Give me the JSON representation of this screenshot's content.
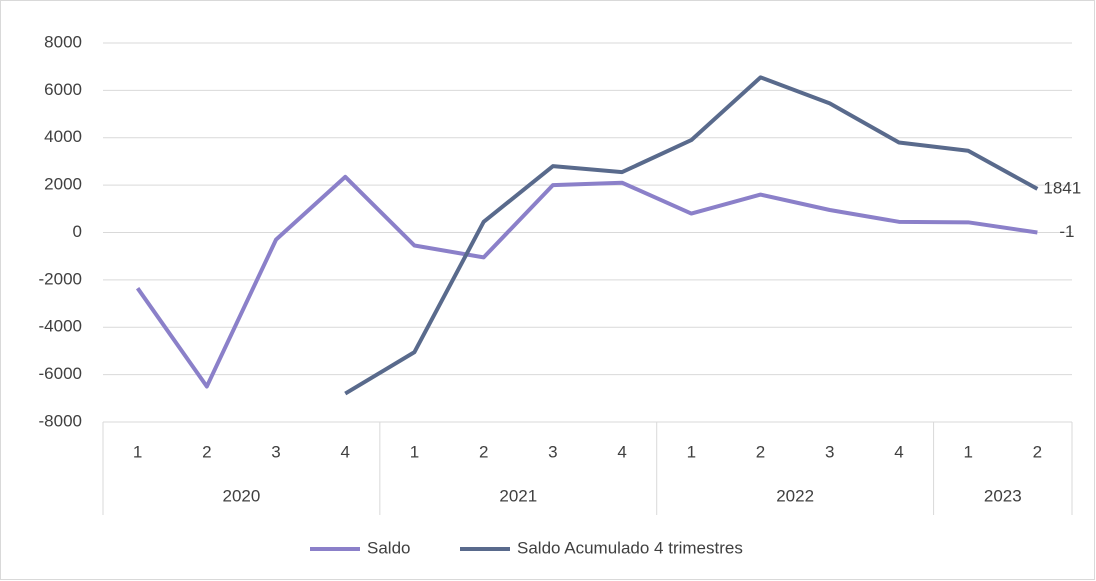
{
  "chart_data": {
    "type": "line",
    "category_groups": [
      {
        "name": "2020",
        "categories": [
          "1",
          "2",
          "3",
          "4"
        ]
      },
      {
        "name": "2021",
        "categories": [
          "1",
          "2",
          "3",
          "4"
        ]
      },
      {
        "name": "2022",
        "categories": [
          "1",
          "2",
          "3",
          "4"
        ]
      },
      {
        "name": "2023",
        "categories": [
          "1",
          "2"
        ]
      }
    ],
    "series": [
      {
        "name": "Saldo",
        "color": "#8b80c9",
        "values": [
          -2350,
          -6500,
          -300,
          2350,
          -550,
          -1050,
          2000,
          2100,
          800,
          1600,
          950,
          450,
          430,
          -1
        ]
      },
      {
        "name": "Saldo Acumulado 4 trimestres",
        "color": "#596a8c",
        "values": [
          null,
          null,
          null,
          -6800,
          -5050,
          450,
          2800,
          2550,
          3900,
          6550,
          5450,
          3800,
          3450,
          1841
        ]
      }
    ],
    "ylim": [
      -8000,
      8000
    ],
    "yticks": [
      -8000,
      -6000,
      -4000,
      -2000,
      0,
      2000,
      4000,
      6000,
      8000
    ],
    "grid": true,
    "legend": "bottom"
  }
}
